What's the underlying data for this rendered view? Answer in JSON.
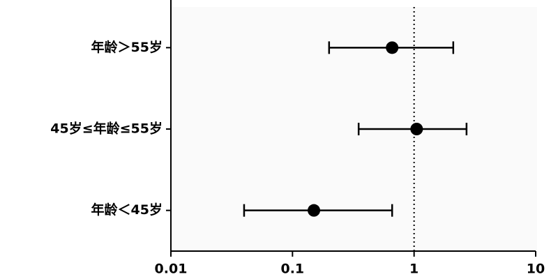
{
  "chart_data": {
    "type": "forest",
    "categories": [
      "年龄＞55岁",
      "45岁≤年龄≤55岁",
      "年龄＜45岁"
    ],
    "values": [
      0.66,
      1.05,
      0.15
    ],
    "lower": [
      0.2,
      0.35,
      0.04
    ],
    "upper": [
      2.1,
      2.7,
      0.66
    ],
    "color": "#000000",
    "xlim": [
      0.01,
      10
    ],
    "xticks": [
      0.01,
      0.1,
      1,
      10
    ],
    "xscale": "log",
    "refline": 1
  }
}
